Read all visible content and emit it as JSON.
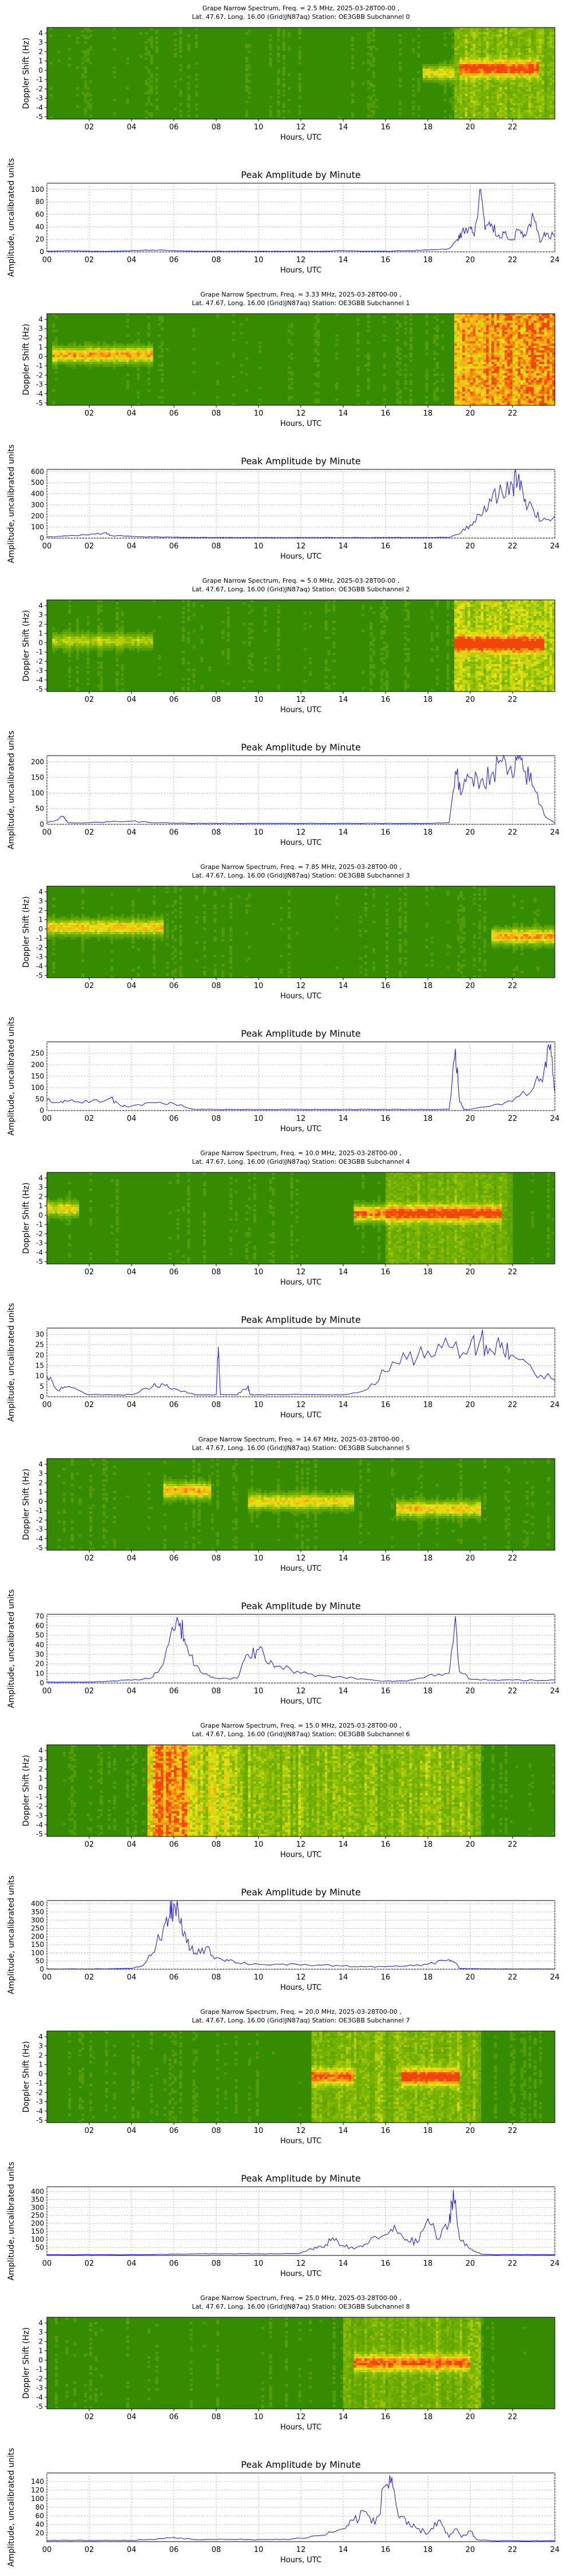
{
  "figure": {
    "common_x_label": "Hours, UTC",
    "amp_title": "Peak Amplitude by Minute",
    "amp_ylabel": "Amplitude, uncalibrated units",
    "spec_ylabel": "Doppler Shift (Hz)",
    "spec_xticks": [
      "02",
      "04",
      "06",
      "08",
      "10",
      "12",
      "14",
      "16",
      "18",
      "20",
      "22"
    ],
    "amp_xticks": [
      "00",
      "02",
      "04",
      "06",
      "08",
      "10",
      "12",
      "14",
      "16",
      "18",
      "20",
      "22",
      "24"
    ],
    "spec_yticks": [
      "4",
      "3",
      "2",
      "1",
      "0",
      "-1",
      "-2",
      "-3",
      "-4",
      "-5"
    ]
  },
  "chart_data": [
    {
      "type": "heatmap",
      "title_line1": "Grape Narrow Spectrum, Freq. = 2.5 MHz, 2025-03-28T00-00 ,",
      "title_line2": "Lat.  47.67, Long.  16.00 (Grid)JN87aq) Station: OE3GBB Subchannel 0",
      "xlabel": "Hours, UTC",
      "ylabel": "Doppler Shift (Hz)",
      "xlim": [
        0,
        24
      ],
      "ylim": [
        -5,
        5
      ],
      "features": [
        {
          "t0": 17.8,
          "t1": 19.3,
          "hz": 0.0,
          "level": 0.55
        },
        {
          "t0": 19.5,
          "t1": 23.3,
          "hz": 0.5,
          "level": 0.8
        }
      ],
      "background_level": 0.08,
      "band_level": 0.3,
      "band_t0": 19.3,
      "band_t1": 24
    },
    {
      "type": "line",
      "title": "Peak Amplitude by Minute",
      "xlabel": "Hours, UTC",
      "ylabel": "Amplitude, uncalibrated units",
      "xlim": [
        0,
        24
      ],
      "ylim": [
        0,
        110
      ],
      "yticks": [
        0,
        20,
        40,
        60,
        80,
        100
      ],
      "x": [
        0,
        1,
        2,
        3,
        4,
        5,
        6,
        7,
        8,
        9,
        10,
        11,
        12,
        13,
        14,
        15,
        16,
        17,
        18,
        19,
        19.4,
        19.6,
        20,
        20.2,
        20.5,
        20.7,
        21,
        21.3,
        21.6,
        22,
        22.3,
        22.6,
        23,
        23.3,
        23.6,
        24
      ],
      "values": [
        1,
        2,
        1,
        1,
        2,
        3,
        2,
        1,
        1,
        1,
        1,
        1,
        1,
        1,
        2,
        1,
        1,
        2,
        3,
        5,
        20,
        30,
        40,
        25,
        100,
        35,
        45,
        25,
        30,
        20,
        35,
        25,
        55,
        15,
        30,
        25
      ]
    },
    {
      "type": "heatmap",
      "title_line1": "Grape Narrow Spectrum, Freq. = 3.33 MHz, 2025-03-28T00-00 ,",
      "title_line2": "Lat.  47.67, Long.  16.00 (Grid)JN87aq) Station: OE3GBB Subchannel 1",
      "xlabel": "Hours, UTC",
      "ylabel": "Doppler Shift (Hz)",
      "xlim": [
        0,
        24
      ],
      "ylim": [
        -5,
        5
      ],
      "features": [
        {
          "t0": 0.2,
          "t1": 5.0,
          "hz": 0.5,
          "level": 0.75
        }
      ],
      "background_level": 0.08,
      "band_level": 0.9,
      "band_t0": 19.3,
      "band_t1": 24
    },
    {
      "type": "line",
      "title": "Peak Amplitude by Minute",
      "xlabel": "Hours, UTC",
      "ylabel": "Amplitude, uncalibrated units",
      "xlim": [
        0,
        24
      ],
      "ylim": [
        0,
        620
      ],
      "yticks": [
        0,
        100,
        200,
        300,
        400,
        500,
        600
      ],
      "x": [
        0,
        1,
        2,
        2.8,
        3,
        4,
        5,
        6,
        7,
        8,
        9,
        10,
        11,
        12,
        13,
        14,
        15,
        16,
        17,
        18,
        19,
        19.5,
        20,
        20.5,
        21,
        21.5,
        22,
        22.3,
        22.6,
        23,
        23.4,
        24
      ],
      "values": [
        10,
        20,
        30,
        50,
        25,
        15,
        10,
        8,
        6,
        5,
        5,
        5,
        5,
        5,
        5,
        5,
        5,
        5,
        5,
        5,
        8,
        40,
        120,
        200,
        330,
        420,
        480,
        580,
        350,
        250,
        160,
        200
      ]
    },
    {
      "type": "heatmap",
      "title_line1": "Grape Narrow Spectrum, Freq. = 5.0 MHz, 2025-03-28T00-00 ,",
      "title_line2": "Lat.  47.67, Long.  16.00 (Grid)JN87aq) Station: OE3GBB Subchannel 2",
      "xlabel": "Hours, UTC",
      "ylabel": "Doppler Shift (Hz)",
      "xlim": [
        0,
        24
      ],
      "ylim": [
        -5,
        5
      ],
      "features": [
        {
          "t0": 0.3,
          "t1": 5.0,
          "hz": 0.5,
          "level": 0.4
        },
        {
          "t0": 19.3,
          "t1": 23.5,
          "hz": 0.2,
          "level": 0.95
        }
      ],
      "background_level": 0.08,
      "band_level": 0.45,
      "band_t0": 19.3,
      "band_t1": 24
    },
    {
      "type": "line",
      "title": "Peak Amplitude by Minute",
      "xlabel": "Hours, UTC",
      "ylabel": "Amplitude, uncalibrated units",
      "xlim": [
        0,
        24
      ],
      "ylim": [
        0,
        220
      ],
      "yticks": [
        0,
        50,
        100,
        150,
        200
      ],
      "x": [
        0,
        0.8,
        1,
        2,
        3,
        4,
        5,
        6,
        7,
        8,
        9,
        10,
        11,
        12,
        13,
        14,
        15,
        16,
        17,
        18,
        19,
        19.3,
        19.6,
        20,
        20.5,
        21,
        21.5,
        22,
        22.3,
        22.6,
        23,
        23.5,
        24
      ],
      "values": [
        5,
        25,
        5,
        5,
        8,
        10,
        5,
        4,
        3,
        3,
        3,
        3,
        3,
        3,
        3,
        3,
        3,
        3,
        3,
        3,
        5,
        170,
        100,
        150,
        140,
        160,
        200,
        150,
        210,
        170,
        120,
        30,
        5
      ]
    },
    {
      "type": "heatmap",
      "title_line1": "Grape Narrow Spectrum, Freq. = 7.85 MHz, 2025-03-28T00-00 ,",
      "title_line2": "Lat.  47.67, Long.  16.00 (Grid)JN87aq) Station: OE3GBB Subchannel 3",
      "xlabel": "Hours, UTC",
      "ylabel": "Doppler Shift (Hz)",
      "xlim": [
        0,
        24
      ],
      "ylim": [
        -5,
        5
      ],
      "features": [
        {
          "t0": 0.0,
          "t1": 5.5,
          "hz": 0.5,
          "level": 0.65
        },
        {
          "t0": 21.0,
          "t1": 24.0,
          "hz": -0.5,
          "level": 0.75
        }
      ],
      "background_level": 0.08,
      "band_level": 0.0,
      "band_t0": 19.3,
      "band_t1": 24
    },
    {
      "type": "line",
      "title": "Peak Amplitude by Minute",
      "xlabel": "Hours, UTC",
      "ylabel": "Amplitude, uncalibrated units",
      "xlim": [
        0,
        24
      ],
      "ylim": [
        0,
        300
      ],
      "yticks": [
        0,
        50,
        100,
        150,
        200,
        250
      ],
      "x": [
        0,
        0.5,
        1,
        2,
        3,
        3.5,
        4,
        5,
        6,
        7,
        8,
        9,
        10,
        11,
        12,
        13,
        14,
        15,
        16,
        17,
        18,
        19,
        19.3,
        19.5,
        19.7,
        20,
        21,
        22,
        23,
        23.5,
        23.8,
        24
      ],
      "values": [
        45,
        35,
        40,
        35,
        55,
        20,
        20,
        35,
        30,
        5,
        5,
        5,
        5,
        5,
        5,
        5,
        5,
        5,
        5,
        5,
        5,
        5,
        270,
        40,
        5,
        5,
        20,
        40,
        100,
        180,
        290,
        80
      ]
    },
    {
      "type": "heatmap",
      "title_line1": "Grape Narrow Spectrum, Freq. = 10.0 MHz, 2025-03-28T00-00 ,",
      "title_line2": "Lat.  47.67, Long.  16.00 (Grid)JN87aq) Station: OE3GBB Subchannel 4",
      "xlabel": "Hours, UTC",
      "ylabel": "Doppler Shift (Hz)",
      "xlim": [
        0,
        24
      ],
      "ylim": [
        -5,
        5
      ],
      "features": [
        {
          "t0": 0.0,
          "t1": 1.5,
          "hz": 1.0,
          "level": 0.55
        },
        {
          "t0": 14.5,
          "t1": 21.5,
          "hz": 0.5,
          "level": 0.9
        }
      ],
      "background_level": 0.08,
      "band_level": 0.25,
      "band_t0": 16,
      "band_t1": 22
    },
    {
      "type": "line",
      "title": "Peak Amplitude by Minute",
      "xlabel": "Hours, UTC",
      "ylabel": "Amplitude, uncalibrated units",
      "xlim": [
        0,
        24
      ],
      "ylim": [
        0,
        33
      ],
      "yticks": [
        0,
        5,
        10,
        15,
        20,
        25,
        30
      ],
      "x": [
        0,
        0.5,
        1,
        2,
        3,
        4,
        5,
        5.5,
        6,
        7,
        8,
        8.1,
        8.2,
        9,
        9.5,
        9.6,
        10,
        11,
        12,
        13,
        14,
        15,
        16,
        17,
        18,
        19,
        20,
        20.5,
        21,
        21.5,
        22,
        23,
        24
      ],
      "values": [
        10,
        3,
        5,
        1,
        1,
        1,
        5,
        6,
        4,
        1,
        1,
        24,
        1,
        1,
        5,
        1,
        1,
        1,
        1,
        1,
        1,
        3,
        12,
        18,
        22,
        24,
        25,
        28,
        22,
        26,
        20,
        12,
        8
      ]
    },
    {
      "type": "heatmap",
      "title_line1": "Grape Narrow Spectrum, Freq. = 14.67 MHz, 2025-03-28T00-00 ,",
      "title_line2": "Lat.  47.67, Long.  16.00 (Grid)JN87aq) Station: OE3GBB Subchannel 5",
      "xlabel": "Hours, UTC",
      "ylabel": "Doppler Shift (Hz)",
      "xlim": [
        0,
        24
      ],
      "ylim": [
        -5,
        5
      ],
      "features": [
        {
          "t0": 5.5,
          "t1": 7.8,
          "hz": 1.5,
          "level": 0.7
        },
        {
          "t0": 9.5,
          "t1": 14.5,
          "hz": 0.3,
          "level": 0.6
        },
        {
          "t0": 16.5,
          "t1": 20.5,
          "hz": -0.5,
          "level": 0.65
        }
      ],
      "background_level": 0.08,
      "band_level": 0.0,
      "band_t0": 19.3,
      "band_t1": 24
    },
    {
      "type": "line",
      "title": "Peak Amplitude by Minute",
      "xlabel": "Hours, UTC",
      "ylabel": "Amplitude, uncalibrated units",
      "xlim": [
        0,
        24
      ],
      "ylim": [
        0,
        72
      ],
      "yticks": [
        0,
        10,
        20,
        30,
        40,
        50,
        60,
        70
      ],
      "x": [
        0,
        1,
        2,
        3,
        4,
        5,
        5.5,
        6,
        6.3,
        6.6,
        7,
        7.5,
        8,
        9,
        9.5,
        10,
        10.5,
        11,
        12,
        13,
        14,
        15,
        16,
        17,
        18,
        19,
        19.3,
        19.5,
        20,
        21,
        22,
        23,
        24
      ],
      "values": [
        1,
        1,
        1,
        2,
        3,
        6,
        20,
        55,
        63,
        40,
        18,
        10,
        5,
        5,
        30,
        35,
        20,
        18,
        10,
        8,
        6,
        4,
        2,
        2,
        8,
        10,
        70,
        12,
        4,
        3,
        3,
        3,
        3
      ]
    },
    {
      "type": "heatmap",
      "title_line1": "Grape Narrow Spectrum, Freq. = 15.0 MHz, 2025-03-28T00-00 ,",
      "title_line2": "Lat.  47.67, Long.  16.00 (Grid)JN87aq) Station: OE3GBB Subchannel 6",
      "xlabel": "Hours, UTC",
      "ylabel": "Doppler Shift (Hz)",
      "xlim": [
        0,
        24
      ],
      "ylim": [
        -5,
        5
      ],
      "features": [],
      "background_level": 0.08,
      "band_level": 0.0,
      "band_t0": 19.3,
      "band_t1": 24,
      "wash": [
        {
          "t0": 4.8,
          "t1": 6.8,
          "level": 0.95
        },
        {
          "t0": 6.8,
          "t1": 9.0,
          "level": 0.55
        },
        {
          "t0": 9.0,
          "t1": 20.5,
          "level": 0.35
        }
      ]
    },
    {
      "type": "line",
      "title": "Peak Amplitude by Minute",
      "xlabel": "Hours, UTC",
      "ylabel": "Amplitude, uncalibrated units",
      "xlim": [
        0,
        24
      ],
      "ylim": [
        0,
        420
      ],
      "yticks": [
        0,
        50,
        100,
        150,
        200,
        250,
        300,
        350,
        400
      ],
      "x": [
        0,
        1,
        2,
        3,
        4,
        4.5,
        5,
        5.5,
        5.8,
        6,
        6.3,
        6.6,
        7,
        7.5,
        8,
        8.5,
        9,
        10,
        11,
        12,
        13,
        14,
        15,
        16,
        17,
        18,
        19,
        19.3,
        19.5,
        20,
        21,
        22,
        23,
        24
      ],
      "values": [
        2,
        2,
        2,
        3,
        5,
        20,
        100,
        250,
        320,
        400,
        280,
        160,
        100,
        130,
        70,
        60,
        40,
        30,
        30,
        25,
        25,
        20,
        15,
        15,
        20,
        30,
        60,
        40,
        5,
        3,
        2,
        2,
        2,
        2
      ]
    },
    {
      "type": "heatmap",
      "title_line1": "Grape Narrow Spectrum, Freq. = 20.0 MHz, 2025-03-28T00-00 ,",
      "title_line2": "Lat.  47.67, Long.  16.00 (Grid)JN87aq) Station: OE3GBB Subchannel 7",
      "xlabel": "Hours, UTC",
      "ylabel": "Doppler Shift (Hz)",
      "xlim": [
        0,
        24
      ],
      "ylim": [
        -5,
        5
      ],
      "features": [
        {
          "t0": 12.5,
          "t1": 14.5,
          "hz": 0.0,
          "level": 0.7
        },
        {
          "t0": 16.8,
          "t1": 19.5,
          "hz": 0.0,
          "level": 0.9
        }
      ],
      "background_level": 0.08,
      "band_level": 0.3,
      "band_t0": 12.5,
      "band_t1": 20.5
    },
    {
      "type": "line",
      "title": "Peak Amplitude by Minute",
      "xlabel": "Hours, UTC",
      "ylabel": "Amplitude, uncalibrated units",
      "xlim": [
        0,
        24
      ],
      "ylim": [
        0,
        430
      ],
      "yticks": [
        50,
        100,
        150,
        200,
        250,
        300,
        350,
        400
      ],
      "x": [
        0,
        1,
        2,
        3,
        4,
        5,
        6,
        7,
        8,
        9,
        10,
        11,
        12,
        12.5,
        13,
        13.5,
        14,
        14.5,
        15,
        16,
        16.5,
        17,
        17.5,
        18,
        18.5,
        19,
        19.2,
        19.5,
        20,
        20.5,
        21,
        22,
        23,
        24
      ],
      "values": [
        5,
        5,
        5,
        5,
        5,
        5,
        8,
        10,
        10,
        10,
        10,
        10,
        15,
        40,
        50,
        110,
        60,
        40,
        70,
        130,
        160,
        100,
        80,
        230,
        100,
        200,
        410,
        100,
        40,
        10,
        5,
        5,
        5,
        5
      ]
    },
    {
      "type": "heatmap",
      "title_line1": "Grape Narrow Spectrum, Freq. = 25.0 MHz, 2025-03-28T00-00 ,",
      "title_line2": "Lat.  47.67, Long.  16.00 (Grid)JN87aq) Station: OE3GBB Subchannel 8",
      "xlabel": "Hours, UTC",
      "ylabel": "Doppler Shift (Hz)",
      "xlim": [
        0,
        24
      ],
      "ylim": [
        -5,
        5
      ],
      "features": [
        {
          "t0": 14.5,
          "t1": 20.0,
          "hz": 0.0,
          "level": 0.75
        }
      ],
      "background_level": 0.08,
      "band_level": 0.25,
      "band_t0": 14.0,
      "band_t1": 20.5
    },
    {
      "type": "line",
      "title": "Peak Amplitude by Minute",
      "xlabel": "Hours, UTC",
      "ylabel": "Amplitude, uncalibrated units",
      "xlim": [
        0,
        24
      ],
      "ylim": [
        0,
        160
      ],
      "yticks": [
        20,
        40,
        60,
        80,
        100,
        120,
        140
      ],
      "x": [
        0,
        1,
        2,
        3,
        4,
        5,
        6,
        7,
        8,
        9,
        10,
        11,
        12,
        13,
        14,
        14.5,
        15,
        15.5,
        16,
        16.3,
        16.6,
        17,
        17.5,
        18,
        18.5,
        19,
        19.3,
        19.6,
        20,
        20.3,
        21,
        22,
        23,
        24
      ],
      "values": [
        3,
        3,
        3,
        3,
        3,
        5,
        10,
        5,
        5,
        5,
        5,
        5,
        8,
        15,
        30,
        50,
        70,
        40,
        130,
        150,
        60,
        40,
        30,
        20,
        50,
        10,
        30,
        10,
        25,
        5,
        2,
        2,
        2,
        2
      ]
    }
  ]
}
